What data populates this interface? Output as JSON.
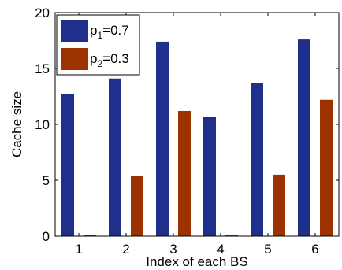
{
  "chart_data": {
    "type": "bar",
    "title": "",
    "xlabel": "Index of each BS",
    "ylabel": "Cache size",
    "categories": [
      "1",
      "2",
      "3",
      "4",
      "5",
      "6"
    ],
    "ylim": [
      0,
      20
    ],
    "yticks": [
      "0",
      "5",
      "10",
      "15",
      "20"
    ],
    "grid": false,
    "legend_position": "top-left",
    "series": [
      {
        "name": "p1=0.7",
        "legend_base": "p",
        "legend_sub": "1",
        "legend_rest": "=0.7",
        "color": "#1f2f8c",
        "values": [
          12.7,
          14.1,
          17.4,
          10.7,
          13.7,
          17.6
        ]
      },
      {
        "name": "p2=0.3",
        "legend_base": "p",
        "legend_sub": "2",
        "legend_rest": "=0.3",
        "color": "#9b3200",
        "values": [
          0.0,
          5.4,
          11.2,
          0.0,
          5.5,
          12.2
        ]
      }
    ]
  }
}
